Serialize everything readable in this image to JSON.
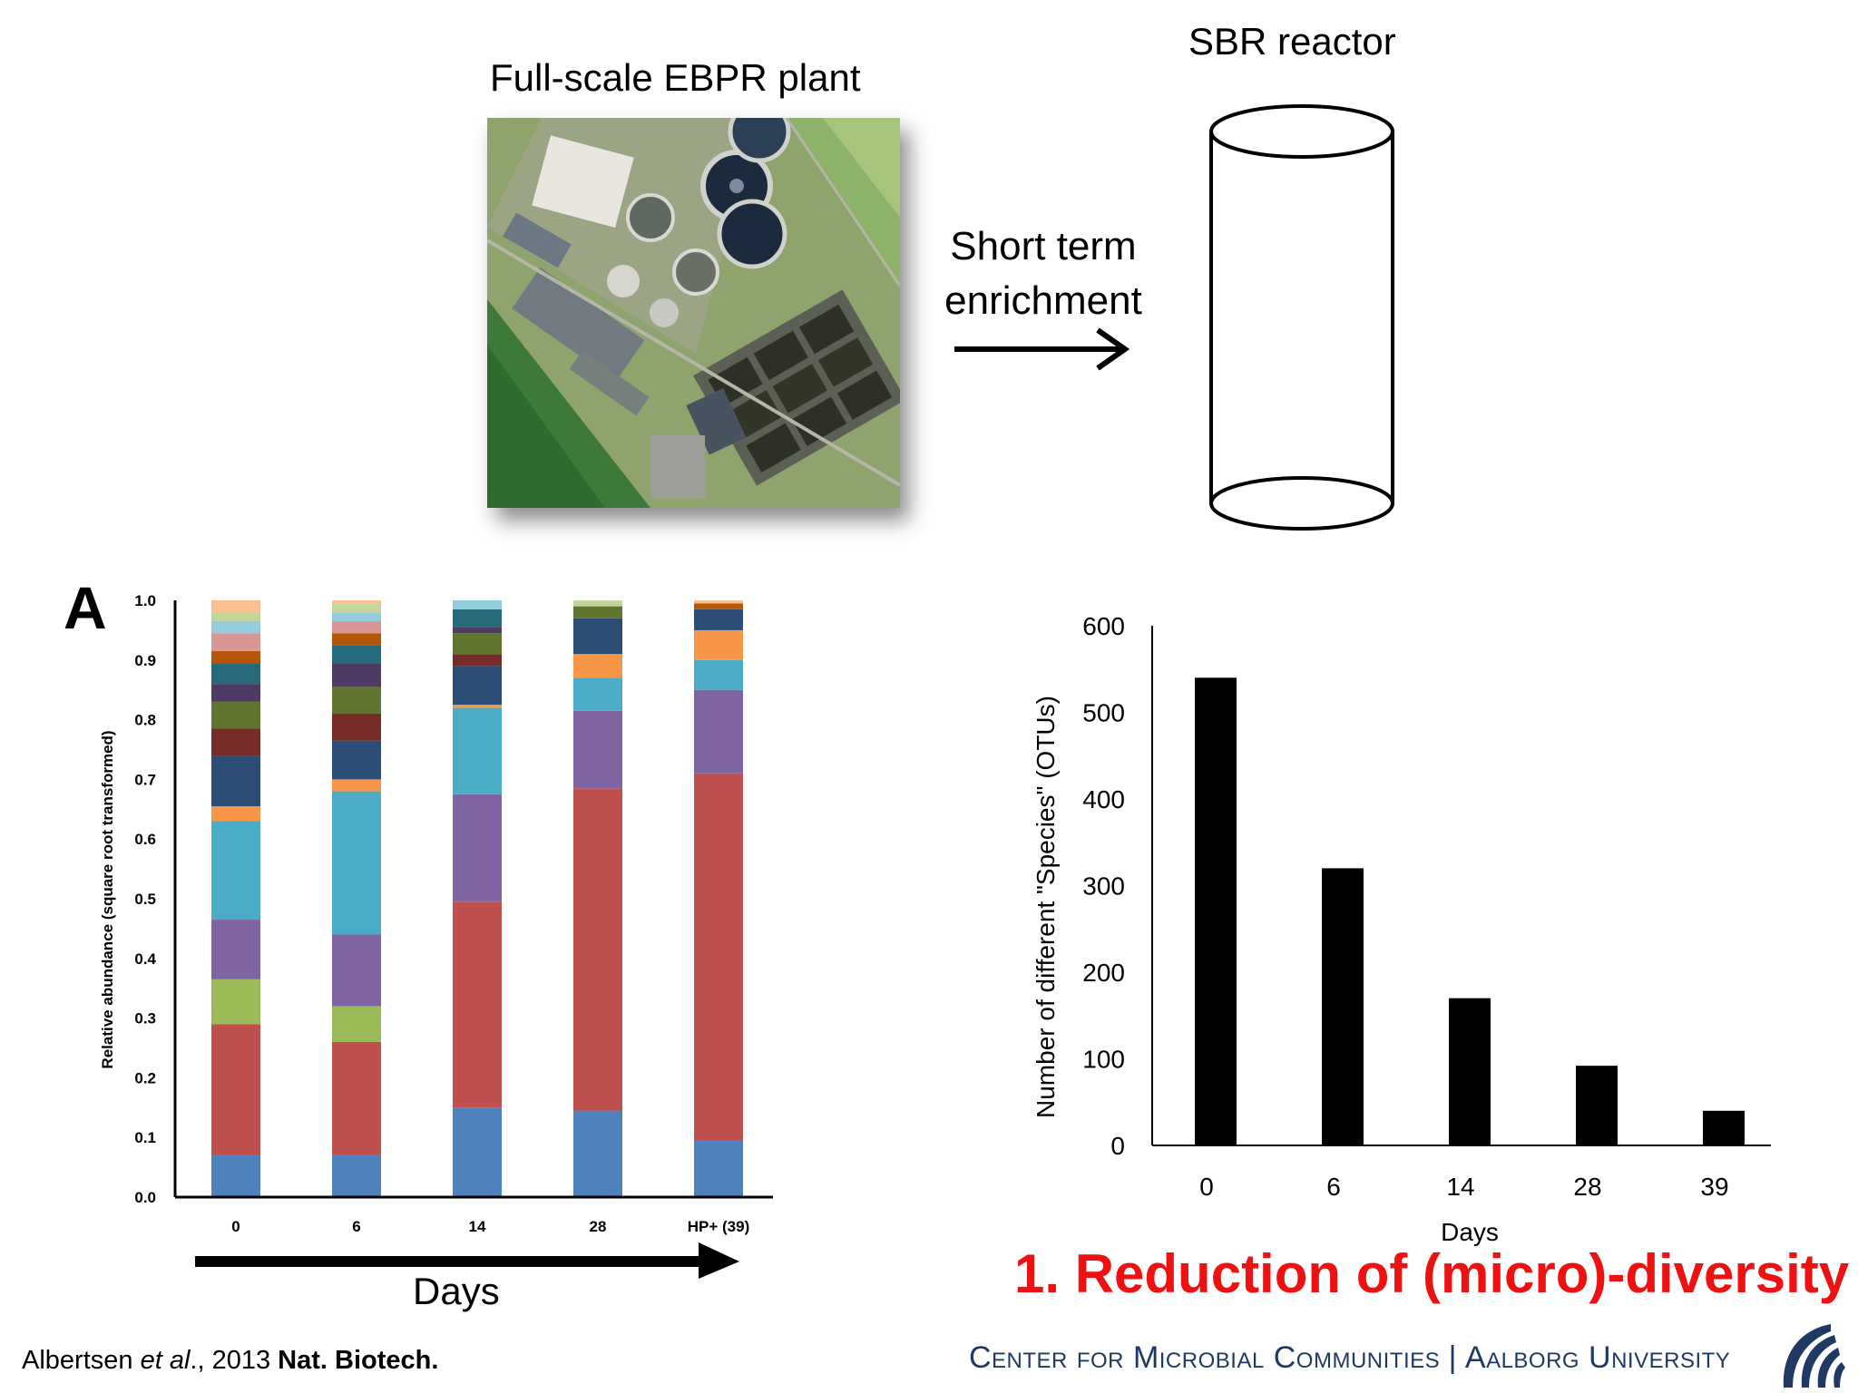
{
  "header": {
    "plant_title": "Full-scale EBPR plant",
    "reactor_title": "SBR reactor",
    "enrichment_line1": "Short term",
    "enrichment_line2": "enrichment"
  },
  "left_panel": {
    "panel_letter": "A",
    "days_label": "Days"
  },
  "takeaway": "1. Reduction of (micro)-diversity",
  "citation": {
    "authors": "Albertsen ",
    "etal": "et al",
    "year": "., 2013 ",
    "journal": "Nat. Biotech."
  },
  "footer": {
    "center": "Center for Microbial Communities",
    "separator": "|",
    "university": "Aalborg University"
  },
  "colors": {
    "takeaway": "#ee1111",
    "footer": "#1f3864",
    "bar_black": "#000000"
  },
  "chart_data": [
    {
      "type": "bar",
      "stacked": true,
      "title": "",
      "xlabel": "",
      "ylabel": "Relative abundance (square root transformed)",
      "categories": [
        "0",
        "6",
        "14",
        "28",
        "HP+ (39)"
      ],
      "yticks": [
        "0.0",
        "0.1",
        "0.2",
        "0.3",
        "0.4",
        "0.5",
        "0.6",
        "0.7",
        "0.8",
        "0.9",
        "1.0"
      ],
      "ylim": [
        0,
        1
      ],
      "legend": "none",
      "segment_colors": [
        "#4f81bd",
        "#c0504d",
        "#9bbb59",
        "#8064a2",
        "#4bacc6",
        "#f79646",
        "#2c4d75",
        "#772c2a",
        "#5f7530",
        "#4d3b62",
        "#276a7c",
        "#b65708",
        "#d99694",
        "#93cddd",
        "#c3d69b",
        "#fac090"
      ],
      "stacks": [
        [
          0.07,
          0.22,
          0.075,
          0.1,
          0.165,
          0.025,
          0.085,
          0.045,
          0.045,
          0.03,
          0.035,
          0.02,
          0.03,
          0.02,
          0.015,
          0.02
        ],
        [
          0.07,
          0.19,
          0.06,
          0.12,
          0.24,
          0.02,
          0.065,
          0.045,
          0.045,
          0.04,
          0.03,
          0.02,
          0.02,
          0.015,
          0.015,
          0.005
        ],
        [
          0.15,
          0.345,
          0.0,
          0.18,
          0.145,
          0.005,
          0.065,
          0.02,
          0.035,
          0.01,
          0.03,
          0.0,
          0.0,
          0.015,
          0.0,
          0.0
        ],
        [
          0.145,
          0.54,
          0.0,
          0.13,
          0.055,
          0.04,
          0.06,
          0.0,
          0.02,
          0.0,
          0.0,
          0.0,
          0.0,
          0.0,
          0.01,
          0.0
        ],
        [
          0.095,
          0.615,
          0.0,
          0.14,
          0.05,
          0.05,
          0.035,
          0.0,
          0.0,
          0.0,
          0.0,
          0.01,
          0.0,
          0.0,
          0.0,
          0.005
        ]
      ]
    },
    {
      "type": "bar",
      "title": "",
      "xlabel": "Days",
      "ylabel": "Number of different \"Species\" (OTUs)",
      "categories": [
        "0",
        "6",
        "14",
        "28",
        "39"
      ],
      "values": [
        540,
        320,
        170,
        92,
        40
      ],
      "yticks": [
        "0",
        "100",
        "200",
        "300",
        "400",
        "500",
        "600"
      ],
      "ylim": [
        0,
        600
      ],
      "grid": false
    }
  ]
}
